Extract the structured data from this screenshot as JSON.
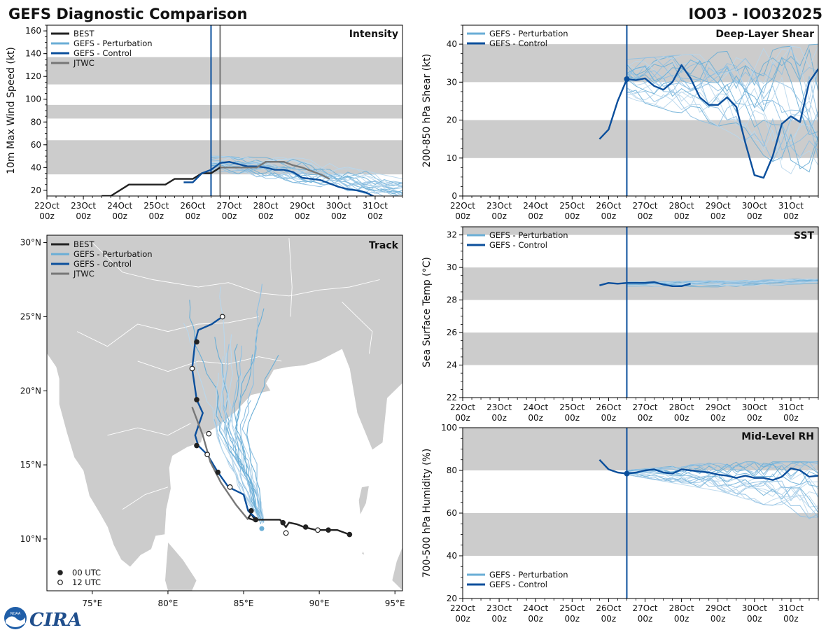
{
  "header": {
    "title_left": "GEFS Diagnostic Comparison",
    "title_right": "IO03 - IO032025"
  },
  "logo": {
    "text": "CIRA",
    "seal_text": "NOAA"
  },
  "colors": {
    "best": "#222222",
    "perturbation": "#6aaed6",
    "control": "#0b4f9c",
    "jtwc": "#777777",
    "band": "#cccccc",
    "land": "#cccccc",
    "init_line": "#0b4f9c"
  },
  "time_axis": {
    "tick_labels": [
      "22Oct\n00z",
      "23Oct\n00z",
      "24Oct\n00z",
      "25Oct\n00z",
      "26Oct\n00z",
      "27Oct\n00z",
      "28Oct\n00z",
      "29Oct\n00z",
      "30Oct\n00z",
      "31Oct\n00z"
    ],
    "range_days": [
      0,
      9.75
    ],
    "init_day": 4.5
  },
  "chart_data": [
    {
      "id": "intensity",
      "type": "line",
      "title": "Intensity",
      "ylabel": "10m Max Wind Speed (kt)",
      "xlabel": "",
      "ylim": [
        15,
        165
      ],
      "yticks": [
        20,
        40,
        60,
        80,
        100,
        120,
        140,
        160
      ],
      "bands": [
        [
          34,
          64
        ],
        [
          83,
          95
        ],
        [
          113,
          137
        ]
      ],
      "legend": [
        "BEST",
        "GEFS - Perturbation",
        "GEFS - Control",
        "JTWC"
      ],
      "legend_position": "top-left",
      "jtwc_init_day": 4.75,
      "series": [
        {
          "name": "BEST",
          "x": [
            1.5,
            1.75,
            2.0,
            2.25,
            2.5,
            2.75,
            3.0,
            3.25,
            3.5,
            3.75,
            4.0,
            4.25,
            4.5,
            4.75,
            5.0,
            5.25
          ],
          "y": [
            15,
            15,
            20,
            25,
            25,
            25,
            25,
            25,
            30,
            30,
            30,
            35,
            35,
            40,
            40,
            40
          ]
        },
        {
          "name": "GEFS - Control",
          "x": [
            3.75,
            4.0,
            4.25,
            4.5,
            4.75,
            5.0,
            5.25,
            5.5,
            5.75,
            6.0,
            6.25,
            6.5,
            6.75,
            7.0,
            7.25,
            7.5,
            7.75,
            8.0,
            8.25,
            8.5,
            8.75,
            9.0,
            9.25,
            9.5,
            9.75
          ],
          "y": [
            27,
            27,
            35,
            38,
            44,
            45,
            43,
            41,
            41,
            40,
            38,
            38,
            36,
            31,
            30,
            29,
            26,
            23,
            21,
            20,
            18,
            14,
            13,
            14,
            14
          ]
        },
        {
          "name": "JTWC",
          "x": [
            4.75,
            5.0,
            5.25,
            5.5,
            5.75,
            6.0,
            6.25,
            6.5,
            6.75,
            7.0,
            7.25,
            7.5,
            7.75
          ],
          "y": [
            40,
            40,
            40,
            40,
            40,
            45,
            45,
            45,
            42,
            40,
            37,
            34,
            30
          ]
        }
      ],
      "perturbation_spread": {
        "start_day": 4.5,
        "end_day": 9.75,
        "start_range": [
          38,
          50
        ],
        "mid_range": [
          25,
          48
        ],
        "end_range": [
          12,
          30
        ],
        "members": 20
      }
    },
    {
      "id": "shear",
      "type": "line",
      "title": "Deep-Layer Shear",
      "ylabel": "200-850 hPa Shear (kt)",
      "xlabel": "",
      "ylim": [
        0,
        45
      ],
      "yticks": [
        0,
        10,
        20,
        30,
        40
      ],
      "bands": [
        [
          10,
          20
        ],
        [
          30,
          40
        ]
      ],
      "legend": [
        "GEFS - Perturbation",
        "GEFS - Control"
      ],
      "legend_position": "top-left",
      "series": [
        {
          "name": "GEFS - Control",
          "x": [
            3.75,
            4.0,
            4.25,
            4.5,
            4.75,
            5.0,
            5.25,
            5.5,
            5.75,
            6.0,
            6.25,
            6.5,
            6.75,
            7.0,
            7.25,
            7.5,
            7.75,
            8.0,
            8.25,
            8.5,
            8.75,
            9.0,
            9.25,
            9.5,
            9.75
          ],
          "y": [
            15,
            17.5,
            25,
            30.8,
            30.5,
            31,
            29,
            28,
            30,
            34.5,
            31,
            26,
            24,
            24,
            26,
            23.5,
            14,
            5.5,
            4.8,
            10.5,
            19,
            21,
            19.5,
            30,
            33.5
          ]
        }
      ],
      "marker_init": {
        "x": 4.5,
        "y": 30.8
      },
      "perturbation_spread": {
        "start_day": 4.5,
        "end_day": 9.75,
        "start_range": [
          26,
          36
        ],
        "mid_range": [
          18,
          38
        ],
        "end_range": [
          1,
          40
        ],
        "members": 20
      }
    },
    {
      "id": "track",
      "type": "line",
      "title": "Track",
      "xlabel": "",
      "ylabel": "",
      "xlim": [
        72,
        95.5
      ],
      "ylim": [
        6.5,
        30.5
      ],
      "xtick_labels": [
        "75°E",
        "80°E",
        "85°E",
        "90°E",
        "95°E"
      ],
      "xticks": [
        75,
        80,
        85,
        90,
        95
      ],
      "ytick_labels": [
        "10°N",
        "15°N",
        "20°N",
        "25°N",
        "30°N"
      ],
      "yticks": [
        10,
        15,
        20,
        25,
        30
      ],
      "legend": [
        "BEST",
        "GEFS - Perturbation",
        "GEFS - Control",
        "JTWC"
      ],
      "legend_position": "top-left",
      "marker_legend": [
        "00 UTC",
        "12 UTC"
      ],
      "marker_legend_position": "bottom-left",
      "series": [
        {
          "name": "BEST",
          "lon": [
            92.0,
            91.2,
            90.6,
            89.8,
            89.0,
            88.5,
            88.0,
            87.8,
            87.4,
            86.6,
            86.1,
            85.6,
            85.3,
            85.5,
            85.8
          ],
          "lat": [
            10.3,
            10.6,
            10.6,
            10.6,
            10.8,
            11.0,
            11.1,
            10.8,
            11.3,
            11.3,
            11.3,
            11.3,
            11.4,
            11.7,
            11.2
          ]
        },
        {
          "name": "GEFS - Control",
          "lon": [
            85.9,
            85.3,
            85.0,
            84.0,
            83.3,
            82.6,
            82.0,
            81.8,
            82.3,
            81.9,
            81.6,
            81.8,
            82.0,
            82.9,
            83.6
          ],
          "lat": [
            11.3,
            11.9,
            13.0,
            13.5,
            14.5,
            15.7,
            16.3,
            17.0,
            18.5,
            19.4,
            21.5,
            23.3,
            24.1,
            24.5,
            25.0
          ]
        },
        {
          "name": "JTWC",
          "lon": [
            85.3,
            84.5,
            83.5,
            82.8,
            82.3,
            81.6
          ],
          "lat": [
            11.3,
            12.3,
            13.8,
            15.2,
            17.0,
            18.9
          ]
        }
      ],
      "markers_00utc": [
        [
          92.0,
          10.3
        ],
        [
          90.6,
          10.6
        ],
        [
          89.1,
          10.8
        ],
        [
          87.6,
          11.1
        ],
        [
          85.5,
          11.9
        ],
        [
          83.3,
          14.5
        ],
        [
          81.9,
          16.3
        ],
        [
          81.9,
          19.4
        ],
        [
          81.9,
          23.3
        ],
        [
          85.8,
          11.3
        ]
      ],
      "markers_12utc": [
        [
          89.9,
          10.6
        ],
        [
          87.8,
          10.4
        ],
        [
          84.1,
          13.5
        ],
        [
          82.6,
          15.7
        ],
        [
          82.7,
          17.1
        ],
        [
          81.6,
          21.5
        ],
        [
          83.6,
          25.0
        ]
      ],
      "perturbation_end": [
        86.2,
        10.7
      ]
    },
    {
      "id": "sst",
      "type": "line",
      "title": "SST",
      "ylabel": "Sea Surface Temp (°C)",
      "xlabel": "",
      "ylim": [
        22,
        32.5
      ],
      "yticks": [
        22,
        24,
        26,
        28,
        30,
        32
      ],
      "bands": [
        [
          24,
          26
        ],
        [
          28,
          30
        ],
        [
          32,
          32.5
        ]
      ],
      "legend": [
        "GEFS - Perturbation",
        "GEFS - Control"
      ],
      "legend_position": "top-left",
      "series": [
        {
          "name": "GEFS - Control",
          "x": [
            3.75,
            4.0,
            4.25,
            4.5,
            4.75,
            5.0,
            5.25,
            5.5,
            5.75,
            6.0,
            6.25
          ],
          "y": [
            28.9,
            29.05,
            29.0,
            29.05,
            29.05,
            29.05,
            29.1,
            28.95,
            28.85,
            28.85,
            29.0
          ]
        }
      ],
      "perturbation_spread": {
        "start_day": 4.5,
        "end_day": 9.75,
        "start_range": [
          28.85,
          29.1
        ],
        "mid_range": [
          28.8,
          29.2
        ],
        "end_range": [
          29.0,
          29.3
        ],
        "members": 14
      }
    },
    {
      "id": "rh",
      "type": "line",
      "title": "Mid-Level RH",
      "ylabel": "700-500 hPa Humidity (%)",
      "xlabel": "",
      "ylim": [
        20,
        100
      ],
      "yticks": [
        20,
        40,
        60,
        80,
        100
      ],
      "bands": [
        [
          40,
          60
        ],
        [
          80,
          100
        ]
      ],
      "legend": [
        "GEFS - Perturbation",
        "GEFS - Control"
      ],
      "legend_position": "bottom-left",
      "series": [
        {
          "name": "GEFS - Control",
          "x": [
            3.75,
            4.0,
            4.25,
            4.5,
            4.75,
            5.0,
            5.25,
            5.5,
            5.75,
            6.0,
            6.25,
            6.5,
            6.75,
            7.0,
            7.25,
            7.5,
            7.75,
            8.0,
            8.25,
            8.5,
            8.75,
            9.0,
            9.25,
            9.5,
            9.75
          ],
          "y": [
            85,
            80.5,
            79,
            78.5,
            79,
            80,
            80.5,
            79,
            78.5,
            80.5,
            80,
            79.5,
            79,
            78,
            77.5,
            76.5,
            77.5,
            76.5,
            76.5,
            75.5,
            77,
            81,
            80,
            77,
            77.5
          ]
        }
      ],
      "marker_init": {
        "x": 4.5,
        "y": 78.5
      },
      "perturbation_spread": {
        "start_day": 4.5,
        "end_day": 9.75,
        "start_range": [
          78,
          80
        ],
        "mid_range": [
          70,
          84
        ],
        "end_range": [
          56,
          84
        ],
        "members": 20
      }
    }
  ]
}
